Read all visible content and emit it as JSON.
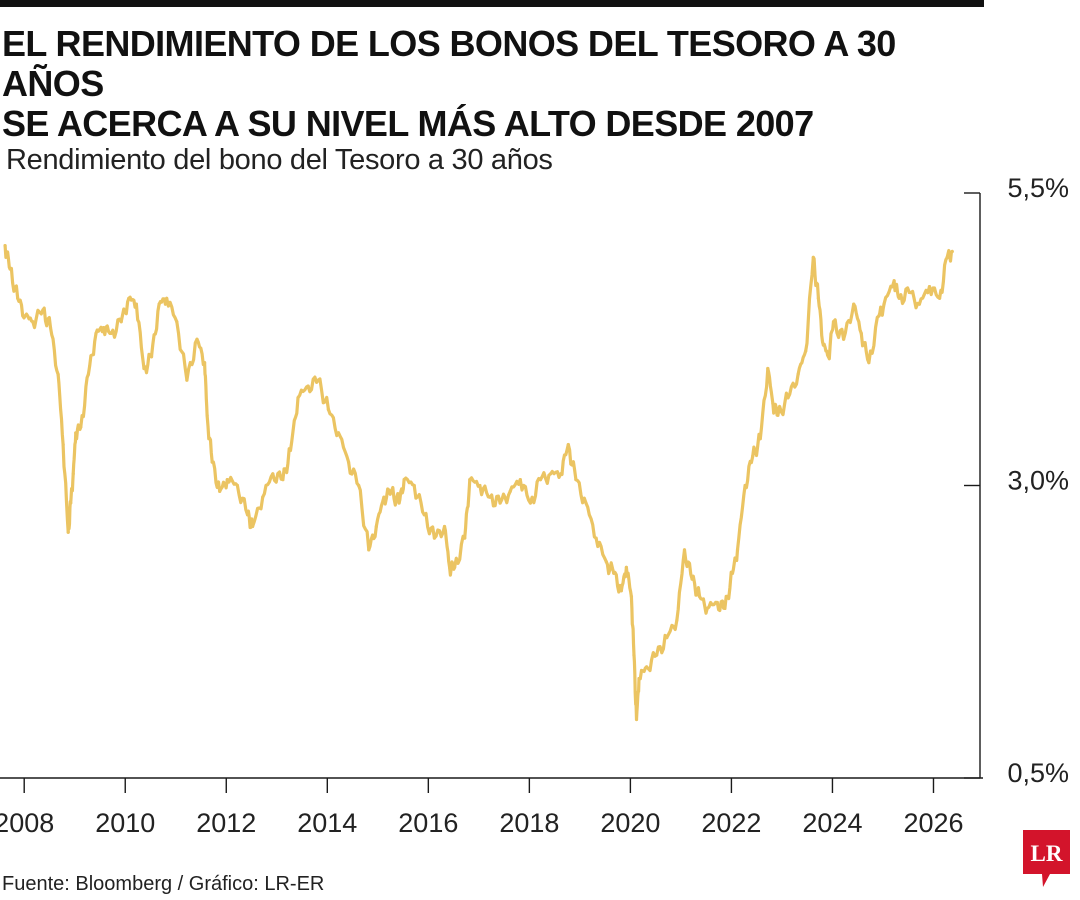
{
  "headline": {
    "line1": "EL RENDIMIENTO DE LOS BONOS DEL TESORO A 30 AÑOS",
    "line2": "SE ACERCA A SU NIVEL MÁS ALTO DESDE 2007"
  },
  "source": "Fuente: Bloomberg / Gráfico: LR-ER",
  "logo_text": "LR",
  "colors": {
    "line": "#EBC462",
    "axis": "#1a1a1a",
    "logo": "#D3142B"
  },
  "chart_data": {
    "type": "line",
    "title": "Rendimiento del bono del Tesoro a 30 años",
    "xlabel": "",
    "ylabel": "",
    "xlim": [
      2007.6,
      2027.0
    ],
    "ylim": [
      0.5,
      5.5
    ],
    "y_ticks": [
      5.5,
      3.0,
      0.5
    ],
    "y_tick_labels": [
      "5,5%",
      "3,0%",
      "0,5%"
    ],
    "y_axis_position": "right",
    "x_ticks": [
      2008,
      2010,
      2012,
      2014,
      2016,
      2018,
      2020,
      2022,
      2024,
      2026
    ],
    "x_tick_labels": [
      "2008",
      "2010",
      "2012",
      "2014",
      "2016",
      "2018",
      "2020",
      "2022",
      "2024",
      "2026"
    ],
    "grid": false,
    "series": [
      {
        "x": [
          2007.7,
          2007.8,
          2007.95,
          2008.1,
          2008.25,
          2008.45,
          2008.6,
          2008.75,
          2008.85,
          2008.95,
          2009.0,
          2009.05,
          2009.1,
          2009.2,
          2009.35,
          2009.5,
          2009.65,
          2009.8,
          2010.0,
          2010.15,
          2010.3,
          2010.45,
          2010.6,
          2010.75,
          2010.9,
          2011.1,
          2011.3,
          2011.5,
          2011.65,
          2011.7,
          2011.8,
          2011.95,
          2012.1,
          2012.3,
          2012.5,
          2012.6,
          2012.8,
          2013.0,
          2013.2,
          2013.35,
          2013.5,
          2013.7,
          2013.9,
          2014.1,
          2014.3,
          2014.5,
          2014.7,
          2014.9,
          2015.05,
          2015.2,
          2015.35,
          2015.5,
          2015.6,
          2015.8,
          2016.0,
          2016.2,
          2016.4,
          2016.5,
          2016.6,
          2016.8,
          2016.9,
          2017.1,
          2017.3,
          2017.5,
          2017.7,
          2017.9,
          2018.1,
          2018.3,
          2018.5,
          2018.7,
          2018.85,
          2019.0,
          2019.2,
          2019.4,
          2019.6,
          2019.75,
          2019.9,
          2020.0,
          2020.1,
          2020.15,
          2020.2,
          2020.25,
          2020.4,
          2020.6,
          2020.8,
          2021.0,
          2021.15,
          2021.3,
          2021.45,
          2021.6,
          2021.8,
          2021.95,
          2022.1,
          2022.2,
          2022.35,
          2022.5,
          2022.65,
          2022.8,
          2022.9,
          2023.0,
          2023.2,
          2023.4,
          2023.55,
          2023.7,
          2023.8,
          2023.9,
          2024.0,
          2024.1,
          2024.3,
          2024.5,
          2024.65,
          2024.8,
          2025.0,
          2025.1,
          2025.3,
          2025.4,
          2025.6,
          2025.8,
          2026.0,
          2026.2,
          2026.35,
          2026.45
        ],
        "y": [
          5.05,
          4.85,
          4.6,
          4.45,
          4.4,
          4.5,
          4.35,
          3.95,
          3.35,
          2.6,
          2.85,
          3.1,
          3.45,
          3.5,
          3.95,
          4.3,
          4.35,
          4.3,
          4.4,
          4.6,
          4.55,
          4.0,
          4.1,
          4.55,
          4.6,
          4.4,
          3.9,
          4.25,
          4.05,
          3.6,
          3.2,
          2.95,
          3.05,
          3.0,
          2.75,
          2.65,
          2.9,
          3.1,
          3.05,
          3.3,
          3.75,
          3.85,
          3.9,
          3.65,
          3.45,
          3.2,
          3.0,
          2.45,
          2.65,
          2.9,
          2.95,
          2.85,
          3.05,
          3.0,
          2.75,
          2.55,
          2.65,
          2.3,
          2.3,
          2.55,
          3.05,
          3.0,
          2.9,
          2.85,
          2.95,
          3.05,
          2.85,
          3.05,
          3.1,
          3.1,
          3.35,
          3.05,
          2.85,
          2.55,
          2.35,
          2.25,
          2.1,
          2.3,
          2.05,
          1.55,
          1.0,
          1.35,
          1.45,
          1.55,
          1.7,
          1.85,
          2.45,
          2.2,
          2.05,
          1.95,
          2.0,
          1.95,
          2.25,
          2.45,
          3.0,
          3.25,
          3.4,
          4.0,
          3.7,
          3.6,
          3.75,
          3.95,
          4.15,
          4.95,
          4.6,
          4.2,
          4.1,
          4.4,
          4.25,
          4.55,
          4.3,
          4.05,
          4.45,
          4.55,
          4.75,
          4.6,
          4.65,
          4.55,
          4.7,
          4.6,
          4.95,
          5.0
        ]
      }
    ]
  }
}
